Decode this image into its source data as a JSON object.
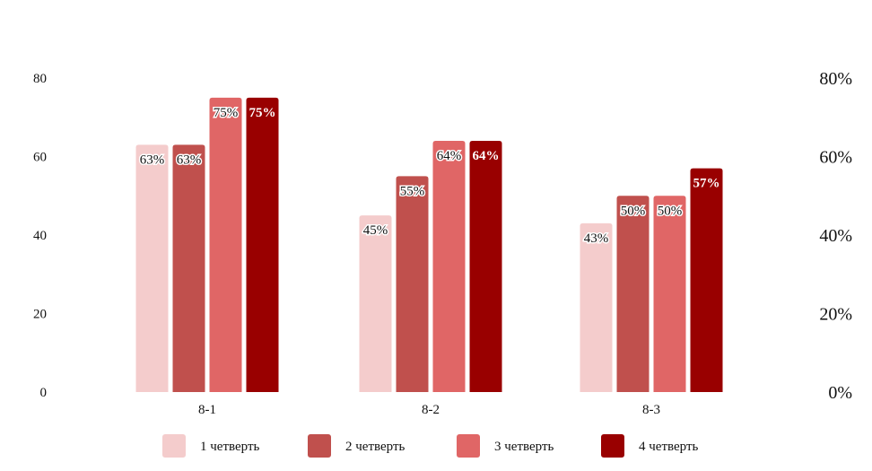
{
  "chart_data": {
    "type": "bar",
    "categories": [
      "8-1",
      "8-2",
      "8-3"
    ],
    "series": [
      {
        "name": "1 четверть",
        "color": "#f4cccc",
        "values": [
          63,
          45,
          43
        ],
        "labels": [
          "63%",
          "45%",
          "43%"
        ]
      },
      {
        "name": "2 четверть",
        "color": "#c0504d",
        "values": [
          63,
          55,
          50
        ],
        "labels": [
          "63%",
          "55%",
          "50%"
        ]
      },
      {
        "name": "3 четверть",
        "color": "#e06666",
        "values": [
          75,
          64,
          50
        ],
        "labels": [
          "75%",
          "64%",
          "50%"
        ]
      },
      {
        "name": "4 четверть",
        "color": "#990000",
        "values": [
          75,
          64,
          57
        ],
        "labels": [
          "75%",
          "64%",
          "57%"
        ]
      }
    ],
    "ylim": [
      0,
      80
    ],
    "yticks_left": [
      "0",
      "20",
      "40",
      "60",
      "80"
    ],
    "yticks_right": [
      "0%",
      "20%",
      "40%",
      "60%",
      "80%"
    ],
    "legend_position": "bottom",
    "grid": false
  }
}
